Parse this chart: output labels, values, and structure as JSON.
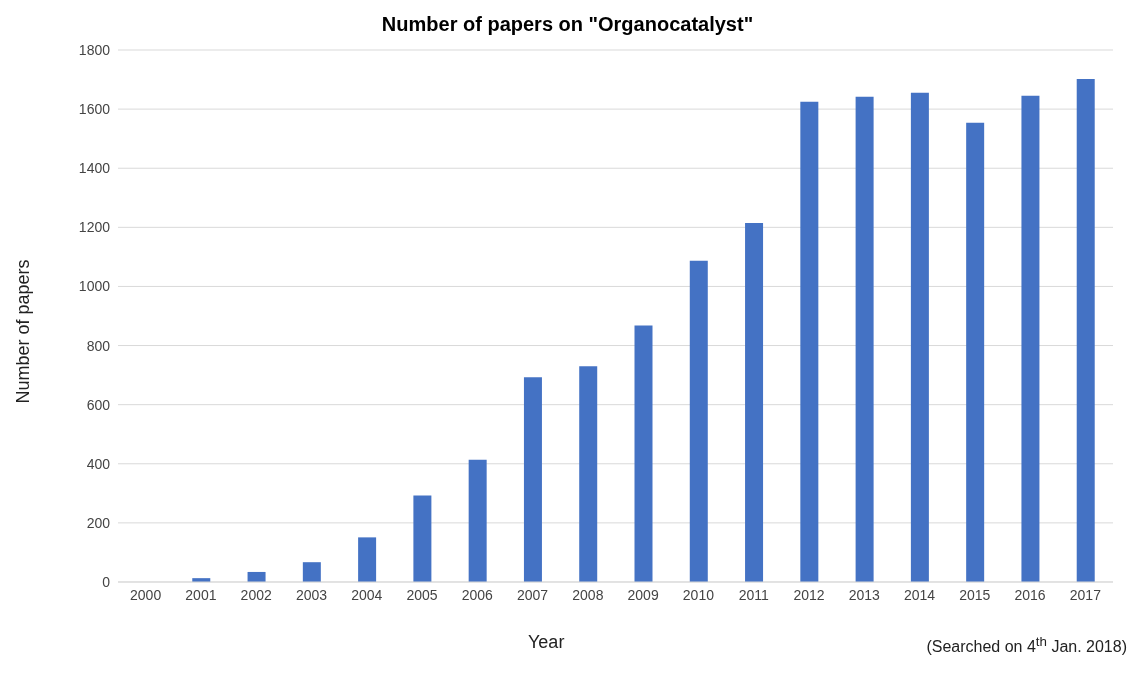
{
  "chart_data": {
    "type": "bar",
    "title": "Number of papers on \"Organocatalyst\"",
    "xlabel": "Year",
    "ylabel": "Number of papers",
    "annotations": [
      "(Searched on 4$^{th}$ Jan. 2018)"
    ],
    "categories": [
      "2000",
      "2001",
      "2002",
      "2003",
      "2004",
      "2005",
      "2006",
      "2007",
      "2008",
      "2009",
      "2010",
      "2011",
      "2012",
      "2013",
      "2014",
      "2015",
      "2016",
      "2017"
    ],
    "values": [
      0,
      13,
      34,
      67,
      151,
      293,
      414,
      693,
      730,
      868,
      1087,
      1215,
      1625,
      1642,
      1655,
      1554,
      1645,
      1702
    ],
    "color": "#4472c4",
    "ylim": [
      0,
      1800
    ],
    "yticks": [
      0,
      200,
      400,
      600,
      800,
      1000,
      1200,
      1400,
      1600,
      1800
    ],
    "grid": "y"
  }
}
